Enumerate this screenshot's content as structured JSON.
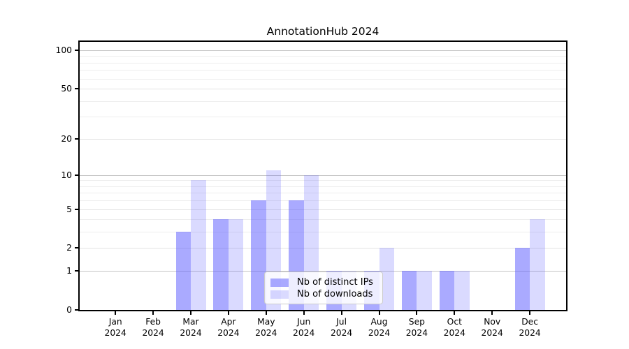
{
  "title": "AnnotationHub 2024",
  "chart_data": {
    "type": "bar",
    "title": "AnnotationHub 2024",
    "categories": [
      "Jan 2024",
      "Feb 2024",
      "Mar 2024",
      "Apr 2024",
      "May 2024",
      "Jun 2024",
      "Jul 2024",
      "Aug 2024",
      "Sep 2024",
      "Oct 2024",
      "Nov 2024",
      "Dec 2024"
    ],
    "month_labels": [
      "Jan",
      "Feb",
      "Mar",
      "Apr",
      "May",
      "Jun",
      "Jul",
      "Aug",
      "Sep",
      "Oct",
      "Nov",
      "Dec"
    ],
    "year_label": "2024",
    "series": [
      {
        "name": "Nb of distinct IPs",
        "color": "rgba(85,85,255,0.5)",
        "values": [
          0,
          0,
          3,
          4,
          6,
          6,
          1,
          1,
          1,
          1,
          0,
          2
        ]
      },
      {
        "name": "Nb of downloads",
        "color": "rgba(85,85,255,0.22)",
        "values": [
          0,
          0,
          9,
          4,
          11,
          10,
          1,
          2,
          1,
          1,
          0,
          4
        ]
      }
    ],
    "xlabel": "",
    "ylabel": "",
    "yscale": "log1p",
    "yticks": [
      0,
      1,
      2,
      5,
      10,
      20,
      50,
      100
    ],
    "ylim": [
      0,
      116
    ],
    "grid": true,
    "grid_decade_values": [
      1,
      10,
      100
    ],
    "grid_mid_values": [
      2,
      5,
      20,
      50
    ],
    "grid_minor_values": [
      3,
      4,
      6,
      7,
      8,
      9,
      30,
      40,
      60,
      70,
      80,
      90
    ],
    "legend_position": "lower center",
    "colors": {
      "bar_dark": "rgba(85,85,255,0.5)",
      "bar_light": "rgba(85,85,255,0.22)",
      "grid_major": "#c5c5c5",
      "grid_mid": "#e3e3e3",
      "grid_minor": "#ededed",
      "axis": "#000000",
      "legend_border": "#cccccc"
    }
  },
  "legend": {
    "items": [
      {
        "label": "Nb of distinct IPs"
      },
      {
        "label": "Nb of downloads"
      }
    ]
  }
}
